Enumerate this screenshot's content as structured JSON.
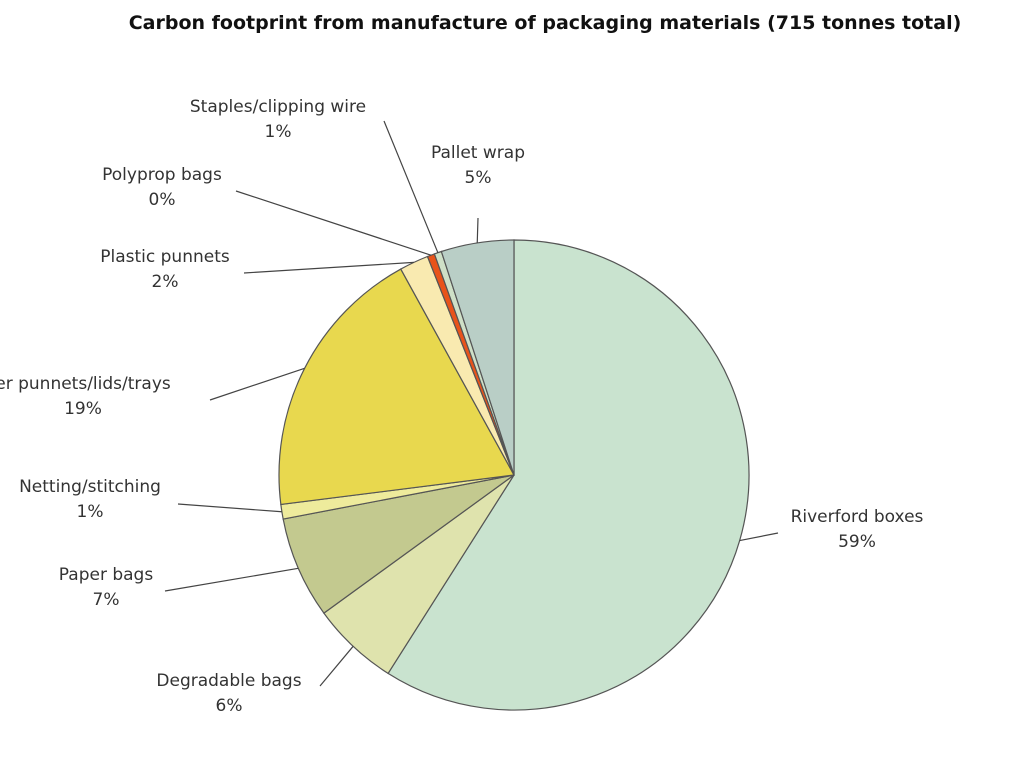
{
  "chart_data": {
    "type": "pie",
    "title": "Carbon footprint from manufacture of packaging materials (715 tonnes total)",
    "start_direction": "top",
    "direction": "clockwise",
    "slices": [
      {
        "label": "Riverford boxes",
        "value": 59,
        "display": "59%",
        "color": "#c9e3cf"
      },
      {
        "label": "Degradable bags",
        "value": 6,
        "display": "6%",
        "color": "#dfe3ad"
      },
      {
        "label": "Paper bags",
        "value": 7,
        "display": "7%",
        "color": "#c3c98f"
      },
      {
        "label": "Netting/stitching",
        "value": 1,
        "display": "1%",
        "color": "#eeeb9c"
      },
      {
        "label": "er punnets/lids/trays",
        "value": 19,
        "display": "19%",
        "color": "#e8d84e"
      },
      {
        "label": "Plastic punnets",
        "value": 2,
        "display": "2%",
        "color": "#f9eab0"
      },
      {
        "label": "Polyprop bags",
        "value": 0.5,
        "display": "0%",
        "color": "#e8531a"
      },
      {
        "label": "Staples/clipping wire",
        "value": 0.5,
        "display": "1%",
        "color": "#cfe0c7"
      },
      {
        "label": "Pallet wrap",
        "value": 5,
        "display": "5%",
        "color": "#b9cec6"
      }
    ]
  }
}
